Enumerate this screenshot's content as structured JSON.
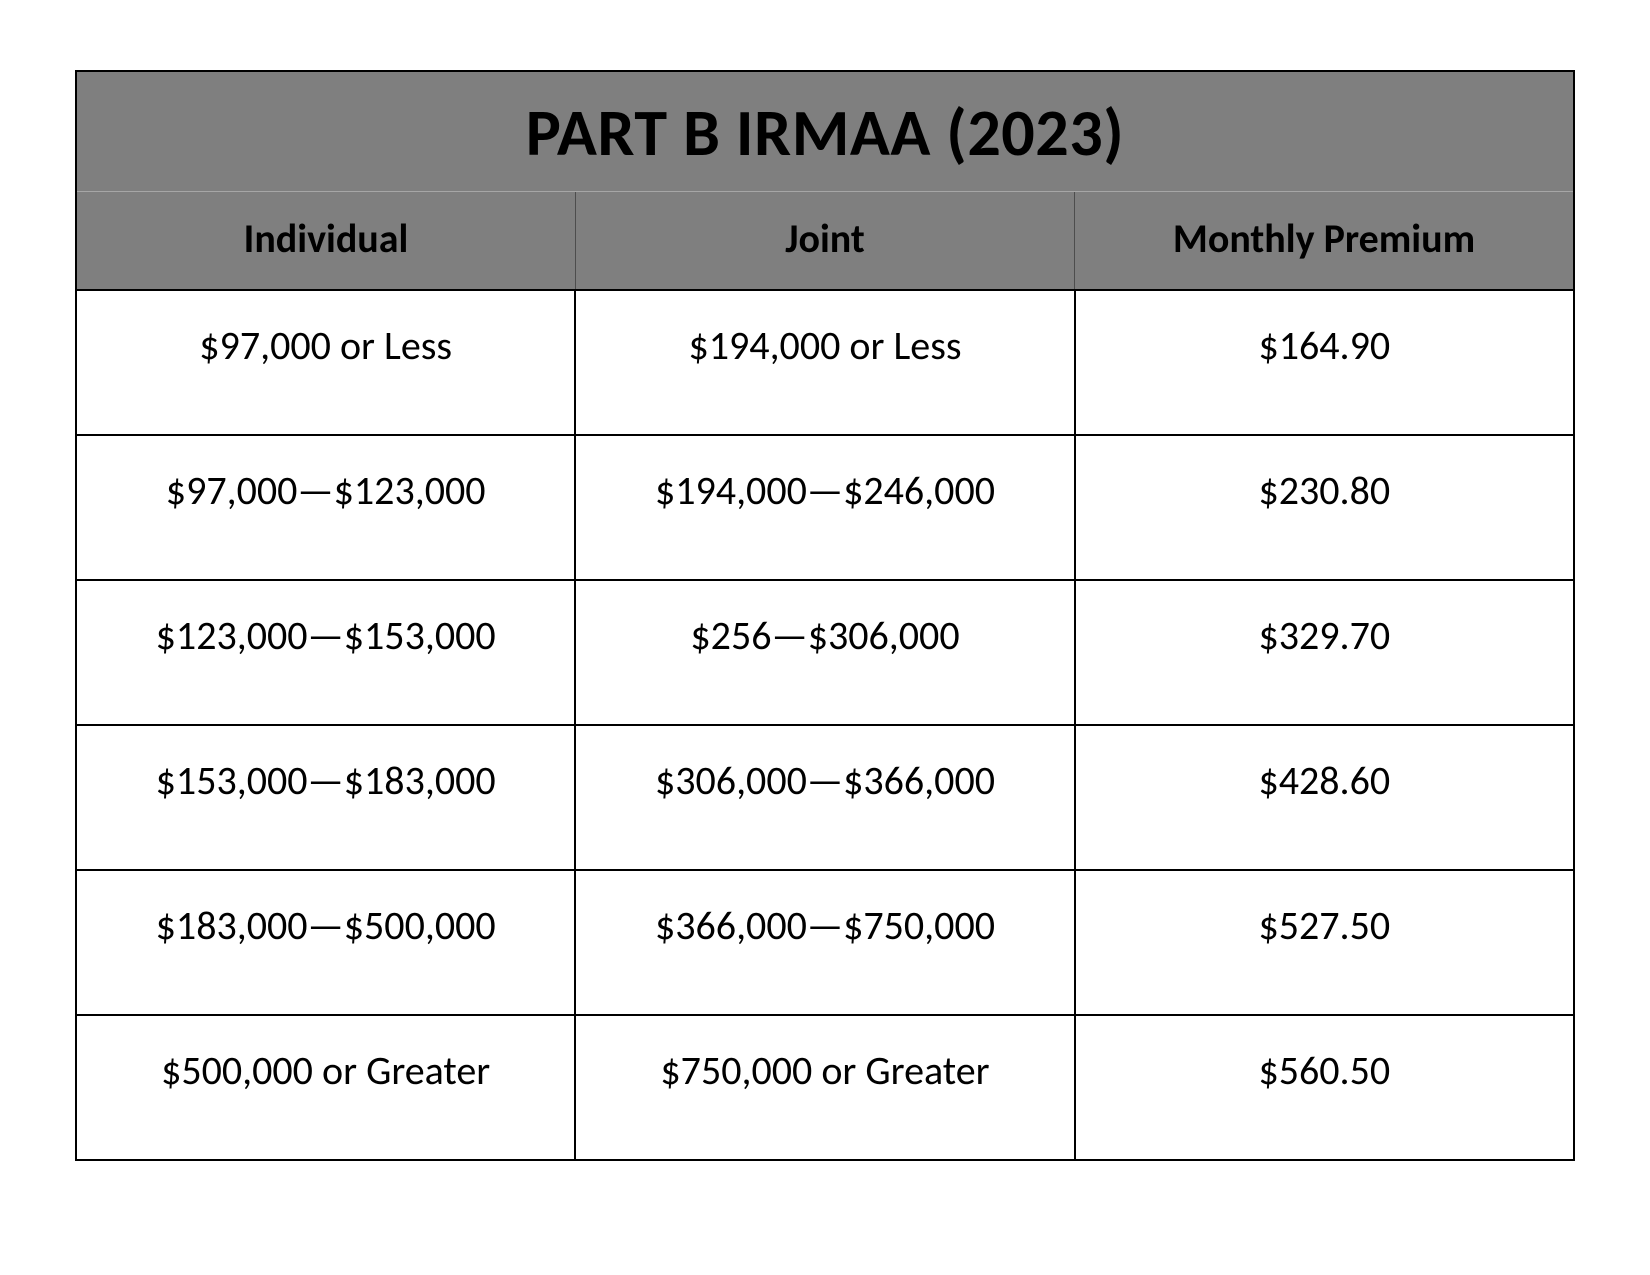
{
  "table": {
    "type": "table",
    "title": "PART B IRMAA (2023)",
    "title_fontsize": 66,
    "title_fontweight": 700,
    "header_background": "#7f7f7f",
    "body_background": "#ffffff",
    "border_color": "#000000",
    "border_width": 2.5,
    "header_fontsize": 40,
    "header_fontweight": 700,
    "cell_fontsize": 40,
    "cell_fontweight": 400,
    "text_color": "#000000",
    "columns": [
      "Individual",
      "Joint",
      "Monthly Premium"
    ],
    "rows": [
      [
        "$97,000 or Less",
        "$194,000 or Less",
        "$164.90"
      ],
      [
        "$97,000—$123,000",
        "$194,000—$246,000",
        "$230.80"
      ],
      [
        "$123,000—$153,000",
        "$256—$306,000",
        "$329.70"
      ],
      [
        "$153,000—$183,000",
        "$306,000—$366,000",
        "$428.60"
      ],
      [
        "$183,000—$500,000",
        "$366,000—$750,000",
        "$527.50"
      ],
      [
        "$500,000 or Greater",
        "$750,000 or Greater",
        "$560.50"
      ]
    ]
  }
}
